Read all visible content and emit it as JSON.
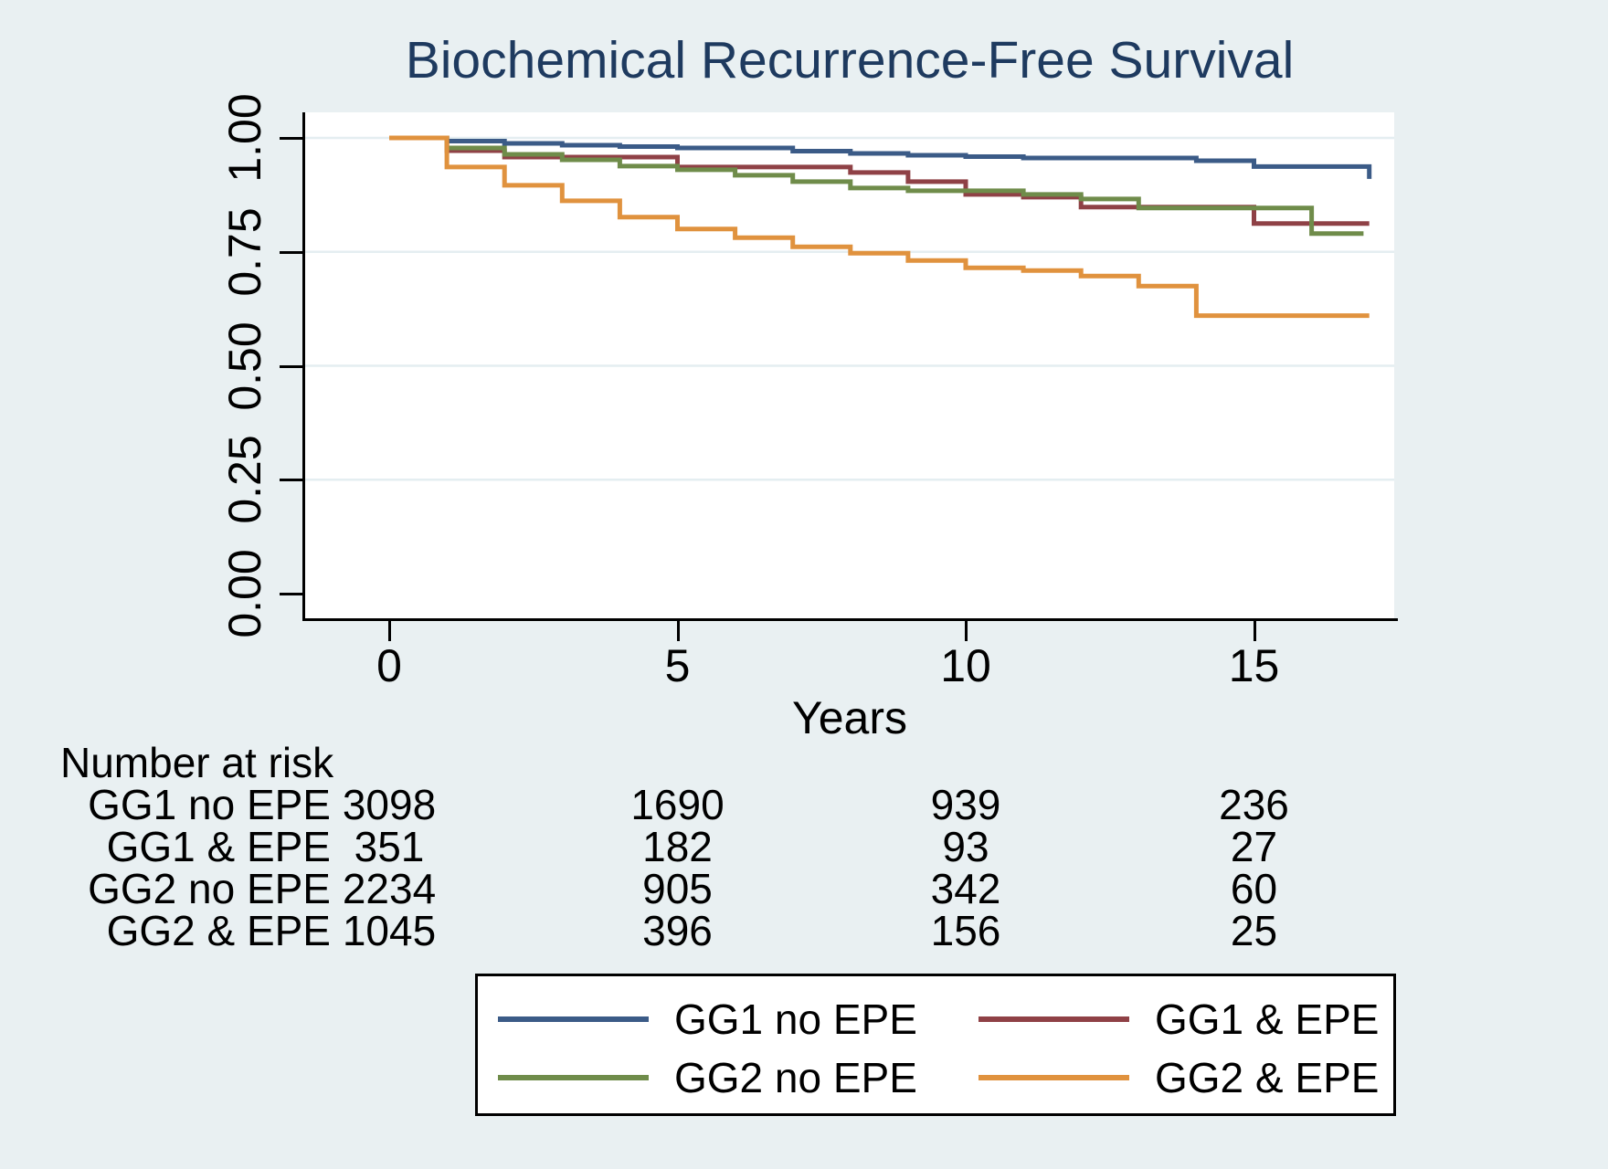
{
  "styles": {
    "page_bg": "#E9F0F2",
    "plot_bg": "#FFFFFF",
    "title_color": "#1E3A5F",
    "axis_color": "#000000",
    "grid_color": "#E4EEF1",
    "legend_bg": "#FFFFFF"
  },
  "chart_data": {
    "type": "line",
    "subtype": "kaplan-meier-step",
    "title": "Biochemical Recurrence-Free Survival",
    "xlabel": "Years",
    "ylabel": "",
    "xlim": [
      0,
      17.4
    ],
    "ylim": [
      0,
      1.0
    ],
    "grid": "horizontal gridlines at 0.25, 0.50, 0.75, 1.00",
    "legend_position": "bottom-center boxed, 2 columns x 2 rows",
    "x_ticks": [
      0,
      5,
      10,
      15
    ],
    "y_ticks": [
      {
        "label": "1.00",
        "value": 1.0
      },
      {
        "label": "0.75",
        "value": 0.75
      },
      {
        "label": "0.50",
        "value": 0.5
      },
      {
        "label": "0.25",
        "value": 0.25
      },
      {
        "label": "0.00",
        "value": 0.0
      }
    ],
    "series": [
      {
        "name": "GG1 no EPE",
        "color": "#3B5B87",
        "points": [
          [
            0,
            1.0
          ],
          [
            1,
            0.993
          ],
          [
            2,
            0.988
          ],
          [
            3,
            0.984
          ],
          [
            4,
            0.981
          ],
          [
            5,
            0.978
          ],
          [
            7,
            0.971
          ],
          [
            8,
            0.966
          ],
          [
            9,
            0.962
          ],
          [
            10,
            0.959
          ],
          [
            11,
            0.956
          ],
          [
            14,
            0.95
          ],
          [
            15,
            0.937
          ],
          [
            17,
            0.937
          ],
          [
            17,
            0.91
          ]
        ]
      },
      {
        "name": "GG1 & EPE",
        "color": "#8F4146",
        "points": [
          [
            0,
            1.0
          ],
          [
            1,
            0.972
          ],
          [
            2,
            0.958
          ],
          [
            5,
            0.936
          ],
          [
            8,
            0.924
          ],
          [
            9,
            0.904
          ],
          [
            10,
            0.876
          ],
          [
            11,
            0.87
          ],
          [
            12,
            0.848
          ],
          [
            15,
            0.812
          ],
          [
            17,
            0.812
          ]
        ]
      },
      {
        "name": "GG2 no EPE",
        "color": "#6F8C4A",
        "points": [
          [
            0,
            1.0
          ],
          [
            1,
            0.978
          ],
          [
            2,
            0.964
          ],
          [
            3,
            0.952
          ],
          [
            4,
            0.938
          ],
          [
            5,
            0.93
          ],
          [
            6,
            0.918
          ],
          [
            7,
            0.904
          ],
          [
            8,
            0.89
          ],
          [
            9,
            0.884
          ],
          [
            11,
            0.876
          ],
          [
            12,
            0.866
          ],
          [
            13,
            0.846
          ],
          [
            16,
            0.79
          ],
          [
            16.9,
            0.79
          ]
        ]
      },
      {
        "name": "GG2 & EPE",
        "color": "#E0923E",
        "points": [
          [
            0,
            1.0
          ],
          [
            1,
            0.936
          ],
          [
            2,
            0.896
          ],
          [
            3,
            0.862
          ],
          [
            4,
            0.826
          ],
          [
            5,
            0.8
          ],
          [
            6,
            0.781
          ],
          [
            7,
            0.761
          ],
          [
            8,
            0.747
          ],
          [
            9,
            0.731
          ],
          [
            10,
            0.715
          ],
          [
            11,
            0.709
          ],
          [
            12,
            0.697
          ],
          [
            13,
            0.675
          ],
          [
            14,
            0.61
          ],
          [
            17,
            0.61
          ]
        ]
      }
    ]
  },
  "risk_table": {
    "heading": "Number at risk",
    "time_points": [
      0,
      5,
      10,
      15
    ],
    "rows": [
      {
        "label": "GG1 no EPE",
        "values": [
          "3098",
          "1690",
          "939",
          "236"
        ]
      },
      {
        "label": "GG1 & EPE",
        "values": [
          "351",
          "182",
          "93",
          "27"
        ]
      },
      {
        "label": "GG2 no EPE",
        "values": [
          "2234",
          "905",
          "342",
          "60"
        ]
      },
      {
        "label": "GG2 & EPE",
        "values": [
          "1045",
          "396",
          "156",
          "25"
        ]
      }
    ]
  },
  "legend": {
    "entries": [
      {
        "label": "GG1 no EPE",
        "color": "#3B5B87"
      },
      {
        "label": "GG1 & EPE",
        "color": "#8F4146"
      },
      {
        "label": "GG2 no EPE",
        "color": "#6F8C4A"
      },
      {
        "label": "GG2 & EPE",
        "color": "#E0923E"
      }
    ]
  }
}
